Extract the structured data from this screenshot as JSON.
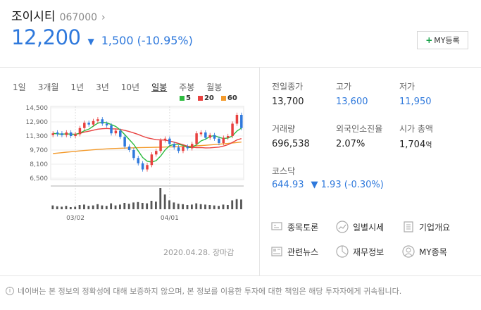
{
  "header": {
    "name": "조이시티",
    "code": "067000",
    "chevron": "›",
    "price": "12,200",
    "change_arrow": "▼",
    "change": "1,500 (-10.95%)",
    "my_button": "MY등록",
    "my_plus": "+"
  },
  "period_tabs": [
    "1일",
    "3개월",
    "1년",
    "3년",
    "10년",
    "일봉",
    "주봉",
    "월봉"
  ],
  "active_tab": "일봉",
  "legend": [
    {
      "label": "5",
      "color": "#2dbb3f"
    },
    {
      "label": "20",
      "color": "#e8413f"
    },
    {
      "label": "60",
      "color": "#f39a2b"
    }
  ],
  "chart_data": {
    "type": "candlestick",
    "y_ticks": [
      "14,500",
      "12,900",
      "11,300",
      "9,700",
      "8,100",
      "6,500"
    ],
    "y_tick_values": [
      14500,
      12900,
      11300,
      9700,
      8100,
      6500
    ],
    "x_ticks": [
      "03/02",
      "04/01"
    ],
    "close": [
      11600,
      11500,
      11400,
      11700,
      11300,
      11500,
      12200,
      12800,
      12600,
      13000,
      13200,
      12700,
      12500,
      11600,
      11900,
      11200,
      10100,
      9700,
      8800,
      8200,
      7500,
      8000,
      9200,
      9600,
      10800,
      11000,
      10400,
      10000,
      9600,
      10100,
      9900,
      10400,
      11600,
      11700,
      11100,
      11400,
      11000,
      10500,
      11100,
      11300,
      12700,
      13700,
      12200
    ],
    "up": [
      true,
      false,
      false,
      true,
      false,
      true,
      true,
      true,
      false,
      true,
      true,
      false,
      false,
      false,
      true,
      false,
      false,
      false,
      false,
      false,
      false,
      true,
      true,
      true,
      true,
      true,
      false,
      false,
      false,
      true,
      false,
      true,
      true,
      true,
      false,
      true,
      false,
      false,
      true,
      true,
      true,
      true,
      false
    ],
    "volume": [
      18,
      14,
      12,
      16,
      10,
      12,
      20,
      22,
      16,
      18,
      24,
      18,
      16,
      28,
      18,
      22,
      30,
      26,
      32,
      34,
      30,
      28,
      40,
      36,
      100,
      70,
      42,
      32,
      26,
      24,
      20,
      22,
      28,
      24,
      22,
      20,
      18,
      16,
      22,
      20,
      42,
      48,
      46
    ]
  },
  "chart_date": "2020.04.28. 장마감",
  "stats": [
    {
      "label": "전일종가",
      "value": "13,700",
      "color": "#222222"
    },
    {
      "label": "고가",
      "value": "13,600",
      "color": "#2f79dc"
    },
    {
      "label": "저가",
      "value": "11,950",
      "color": "#2f79dc"
    },
    {
      "label": "거래량",
      "value": "696,538",
      "color": "#222222"
    },
    {
      "label": "외국인소진율",
      "value": "2.07%",
      "color": "#222222"
    },
    {
      "label": "시가 총액",
      "value": "1,704",
      "unit": "억",
      "color": "#222222"
    }
  ],
  "index": {
    "label": "코스닥",
    "value": "644.93",
    "arrow": "▼",
    "change": "1.93 (-0.30%)"
  },
  "menu": [
    {
      "label": "종목토론",
      "icon": "discussion-icon"
    },
    {
      "label": "일별시세",
      "icon": "trend-icon"
    },
    {
      "label": "기업개요",
      "icon": "document-icon"
    },
    {
      "label": "관련뉴스",
      "icon": "news-icon"
    },
    {
      "label": "재무정보",
      "icon": "pie-chart-icon"
    },
    {
      "label": "MY종목",
      "icon": "user-icon"
    }
  ],
  "footer": {
    "info_icon": "i",
    "notice": "네이버는 본 정보의 정확성에 대해 보증하지 않으며, 본 정보를 이용한 투자에 대한 책임은 해당 투자자에게 귀속됩니다."
  },
  "colors": {
    "blue": "#2f79dc",
    "up_candle": "#e8413f",
    "down_candle": "#2f79dc"
  }
}
